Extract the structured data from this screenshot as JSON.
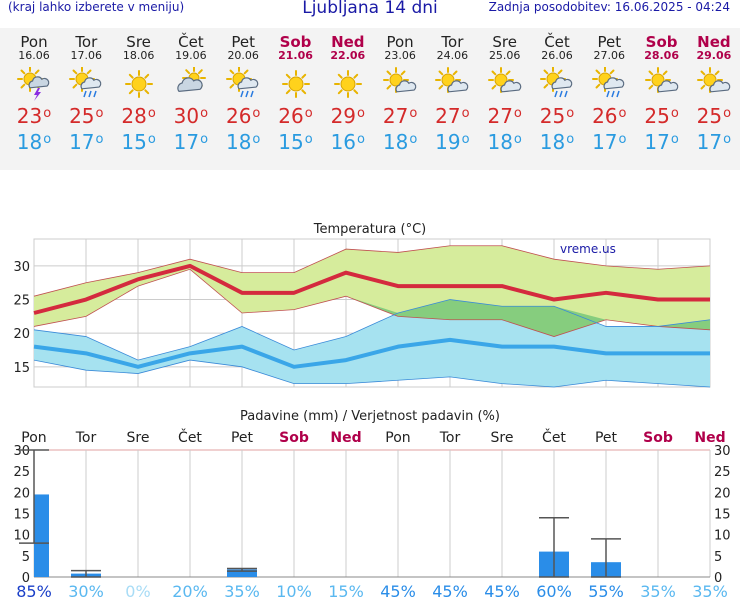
{
  "header": {
    "left": "(kraj lahko izberete v meniju)",
    "title": "Ljubljana 14 dni",
    "right": "Zadnja posodobitev: 16.06.2025 - 04:24"
  },
  "days": [
    {
      "name": "Pon",
      "date": "16.06",
      "weekend": false,
      "icon": "thunderstorm-icon",
      "max": "23",
      "min": "18"
    },
    {
      "name": "Tor",
      "date": "17.06",
      "weekend": false,
      "icon": "sun-rain-icon",
      "max": "25",
      "min": "17"
    },
    {
      "name": "Sre",
      "date": "18.06",
      "weekend": false,
      "icon": "sun-icon",
      "max": "28",
      "min": "15"
    },
    {
      "name": "Čet",
      "date": "19.06",
      "weekend": false,
      "icon": "cloud-sun-icon",
      "max": "30",
      "min": "17"
    },
    {
      "name": "Pet",
      "date": "20.06",
      "weekend": false,
      "icon": "sun-rain-icon",
      "max": "26",
      "min": "18"
    },
    {
      "name": "Sob",
      "date": "21.06",
      "weekend": true,
      "icon": "sun-icon",
      "max": "26",
      "min": "15"
    },
    {
      "name": "Ned",
      "date": "22.06",
      "weekend": true,
      "icon": "sun-icon",
      "max": "29",
      "min": "16"
    },
    {
      "name": "Pon",
      "date": "23.06",
      "weekend": false,
      "icon": "sun-cloud-icon",
      "max": "27",
      "min": "18"
    },
    {
      "name": "Tor",
      "date": "24.06",
      "weekend": false,
      "icon": "sun-cloud-icon",
      "max": "27",
      "min": "19"
    },
    {
      "name": "Sre",
      "date": "25.06",
      "weekend": false,
      "icon": "sun-cloud-icon",
      "max": "27",
      "min": "18"
    },
    {
      "name": "Čet",
      "date": "26.06",
      "weekend": false,
      "icon": "sun-rain-icon",
      "max": "25",
      "min": "18"
    },
    {
      "name": "Pet",
      "date": "27.06",
      "weekend": false,
      "icon": "sun-rain-icon",
      "max": "26",
      "min": "17"
    },
    {
      "name": "Sob",
      "date": "28.06",
      "weekend": true,
      "icon": "sun-cloud-icon",
      "max": "25",
      "min": "17"
    },
    {
      "name": "Ned",
      "date": "29.06",
      "weekend": true,
      "icon": "sun-cloud-icon",
      "max": "25",
      "min": "17"
    }
  ],
  "chart_data": [
    {
      "type": "line",
      "title": "Temperatura (°C)",
      "watermark": "vreme.us",
      "categories": [
        "Pon",
        "Tor",
        "Sre",
        "Čet",
        "Pet",
        "Sob",
        "Ned",
        "Pon",
        "Tor",
        "Sre",
        "Čet",
        "Pet",
        "Sob",
        "Ned"
      ],
      "ylim": [
        12,
        34
      ],
      "yticks": [
        15,
        20,
        25,
        30
      ],
      "grid": true,
      "series": [
        {
          "role": "max",
          "color": "#d42a3e",
          "values": [
            23,
            25,
            28,
            30,
            26,
            26,
            29,
            27,
            27,
            27,
            25,
            26,
            25,
            25
          ]
        },
        {
          "role": "max-range-high",
          "values": [
            25.5,
            27.5,
            29,
            31,
            29,
            29,
            32.5,
            32,
            33,
            33,
            31,
            30,
            29.5,
            30
          ]
        },
        {
          "role": "max-range-low",
          "values": [
            21,
            22.5,
            27,
            29.5,
            23,
            23.5,
            25.5,
            22.5,
            22,
            22,
            19.5,
            22,
            21,
            20.5
          ]
        },
        {
          "role": "min",
          "color": "#3aa6e8",
          "values": [
            18,
            17,
            15,
            17,
            18,
            15,
            16,
            18,
            19,
            18,
            18,
            17,
            17,
            17
          ]
        },
        {
          "role": "min-range-high",
          "values": [
            20.5,
            19.5,
            16,
            18,
            21,
            17.5,
            19.5,
            23,
            25,
            24,
            24,
            21,
            21,
            22
          ]
        },
        {
          "role": "min-range-low",
          "values": [
            16,
            14.5,
            14,
            16,
            15,
            12.5,
            12.5,
            13,
            13.5,
            12.5,
            12,
            13,
            12.5,
            12
          ]
        }
      ],
      "colors": {
        "max_band": "#d6ec9c",
        "min_band": "#a6e2f0",
        "overlap_band": "#86cd7e",
        "grid": "#cccccc"
      }
    },
    {
      "type": "bar",
      "title": "Padavine (mm) / Verjetnost padavin (%)",
      "categories": [
        "Pon",
        "Tor",
        "Sre",
        "Čet",
        "Pet",
        "Sob",
        "Ned",
        "Pon",
        "Tor",
        "Sre",
        "Čet",
        "Pet",
        "Sob",
        "Ned"
      ],
      "weekend": [
        false,
        false,
        false,
        false,
        false,
        true,
        true,
        false,
        false,
        false,
        false,
        false,
        true,
        true
      ],
      "ylim": [
        0,
        30
      ],
      "yticks": [
        0,
        5,
        10,
        15,
        20,
        25,
        30
      ],
      "values": [
        19.5,
        0.8,
        0,
        0,
        1.8,
        0,
        0,
        0,
        0,
        0,
        6,
        3.5,
        0,
        0
      ],
      "error_high": [
        30,
        1.5,
        0,
        0,
        2,
        0,
        0,
        0,
        0,
        0,
        14,
        9,
        0,
        0
      ],
      "error_low": [
        8,
        0,
        0,
        0,
        1.4,
        0,
        0,
        0,
        0,
        0,
        0,
        0,
        0,
        0
      ],
      "probability": [
        "85%",
        "30%",
        "0%",
        "20%",
        "35%",
        "10%",
        "15%",
        "45%",
        "45%",
        "45%",
        "60%",
        "55%",
        "35%",
        "35%"
      ],
      "colors": {
        "bar": "#2a8de8",
        "error": "#555555",
        "weekend": "#b0004a"
      }
    }
  ]
}
